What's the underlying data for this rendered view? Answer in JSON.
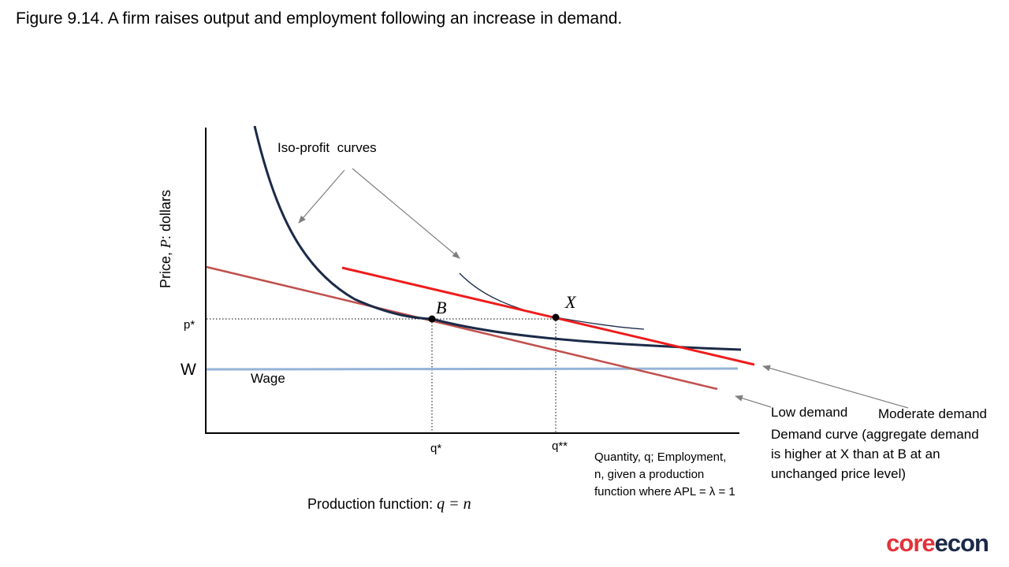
{
  "title": "Figure 9.14. A firm raises output and employment following an increase in demand.",
  "axes": {
    "y_label_prefix": "Price, ",
    "y_label_var": "P",
    "y_label_suffix": ": dollars",
    "x_label_lines": [
      "Quantity, q; Employment,",
      "n, given a production",
      "function where APL = λ = 1"
    ]
  },
  "ticks": {
    "p_star": "p*",
    "w": "W",
    "q_star": "q*",
    "q_double_star": "q**"
  },
  "labels": {
    "iso_profit": "Iso-profit  curves",
    "wage": "Wage",
    "point_b": "B",
    "point_x": "X",
    "low_demand": "Low demand",
    "moderate_demand": "Moderate demand",
    "demand_note_lines": [
      "Demand curve (aggregate demand",
      "is higher at X than at B at an",
      "unchanged price level)"
    ],
    "production_prefix": "Production function: ",
    "production_formula": "q = n"
  },
  "colors": {
    "iso_profit": "#1b2a47",
    "low_demand": "#c0504d",
    "moderate_demand": "#ee1c1c",
    "wage": "#95b3d7",
    "arrow": "#7f7f7f"
  },
  "logo": {
    "part1": "core",
    "part2": "econ"
  }
}
